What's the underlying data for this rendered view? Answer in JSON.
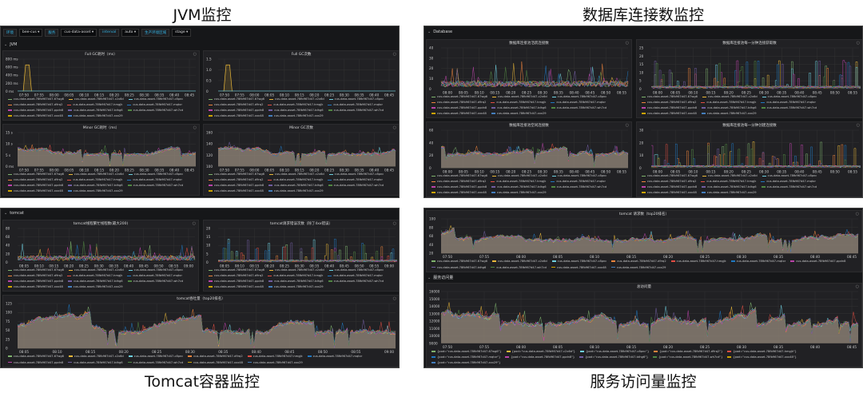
{
  "captions": {
    "jvm": "JVM监控",
    "db": "数据库连接数监控",
    "tomcat": "Tomcat容器监控",
    "traffic": "服务访问量监控"
  },
  "jvm_toolbar": [
    {
      "label": "环境",
      "value": "bee-cus ▾"
    },
    {
      "label": "服务",
      "value": "cus-data-asset ▾"
    },
    {
      "label": "interval",
      "value": "auto ▾"
    },
    {
      "label": "生产环境区域",
      "value": "stage ▾"
    }
  ],
  "rows": {
    "jvm": "JVM",
    "db": "Database",
    "tomcat": "tomcat",
    "traffic": "服务访问量"
  },
  "legend": [
    "cus-data-asset-78fb967d47-67wg6",
    "cus-data-asset-78fb967d47-c2x6d",
    "cus-data-asset-78fb967d47-c8pnc",
    "cus-data-asset-78fb967d47-d9rq2",
    "cus-data-asset-78fb967d47-hmgjk",
    "cus-data-asset-78fb967d47-mqtxr",
    "cus-data-asset-78fb967d47-ppdn8",
    "cus-data-asset-78fb967d47-tdhg6",
    "cus-data-asset-78fb967d47-wh7cd",
    "cus-data-asset-78fb967d47-xxx48",
    "cus-data-asset-78fb967d47-xxx29"
  ],
  "legend_pod": [
    "{pod=\"cus-data-asset-78fb967d47-67wg6\"}",
    "{pod=\"cus-data-asset-78fb967d47-c2x6d\"}",
    "{pod=\"cus-data-asset-78fb967d47-c8pnc\"}",
    "{pod=\"cus-data-asset-78fb967d47-d9rq2\"}",
    "{pod=\"cus-data-asset-78fb967d47-hmgjk\"}",
    "{pod=\"cus-data-asset-78fb967d47-mqtxr\"}",
    "{pod=\"cus-data-asset-78fb967d47-ppdn8\"}",
    "{pod=\"cus-data-asset-78fb967d47-tdhg6\"}",
    "{pod=\"cus-data-asset-78fb967d47-wh7cd\"}",
    "{pod=\"cus-data-asset-78fb967d47-xxx48\"}",
    "{pod=\"cus-data-asset-78fb967d47-xxx29\"}"
  ],
  "colors": [
    "#7eb26d",
    "#eab839",
    "#6ed0e0",
    "#ef843c",
    "#e24d42",
    "#1f78c1",
    "#ba43a9",
    "#705da0",
    "#508642",
    "#cca300",
    "#447ebc"
  ],
  "charts": {
    "fullgc_time": {
      "title": "Full GC耗时（ms）",
      "kind": "pulse",
      "yticks": [
        "0 ms",
        "200 ms",
        "400 ms",
        "600 ms",
        "800 ms"
      ],
      "xticks": [
        "07:50",
        "07:55",
        "08:00",
        "08:05",
        "08:10",
        "08:15",
        "08:20",
        "08:25",
        "08:30",
        "08:35",
        "08:40",
        "08:45"
      ]
    },
    "fullgc_count": {
      "title": "Full GC次数",
      "kind": "pulse",
      "yticks": [
        "0",
        "0.5",
        "1.0",
        "1.5"
      ],
      "xticks": [
        "07:50",
        "07:55",
        "08:00",
        "08:05",
        "08:10",
        "08:15",
        "08:20",
        "08:25",
        "08:30",
        "08:35",
        "08:40",
        "08:45"
      ]
    },
    "minorgc_time": {
      "title": "Minor GC耗时（ms）",
      "kind": "area",
      "yticks": [
        "0 ms",
        "5 s",
        "10 s",
        "15 s"
      ],
      "xticks": [
        "07:50",
        "07:55",
        "08:00",
        "08:05",
        "08:10",
        "08:15",
        "08:20",
        "08:25",
        "08:30",
        "08:35",
        "08:40",
        "08:45"
      ]
    },
    "minorgc_count": {
      "title": "Minor GC次数",
      "kind": "area",
      "yticks": [
        "100",
        "120",
        "140",
        "160"
      ],
      "xticks": [
        "07:50",
        "07:55",
        "08:00",
        "08:05",
        "08:10",
        "08:15",
        "08:20",
        "08:25",
        "08:30",
        "08:35",
        "08:40",
        "08:45"
      ]
    },
    "db_active": {
      "title": "数据库连接池活跃连接数",
      "kind": "spike",
      "yticks": [
        "0",
        "10",
        "20",
        "30",
        "40"
      ],
      "xticks": [
        "08:00",
        "08:05",
        "08:10",
        "08:15",
        "08:20",
        "08:25",
        "08:30",
        "08:35",
        "08:40",
        "08:45",
        "08:50",
        "08:55"
      ]
    },
    "db_timeout": {
      "title": "数据库连接池每一分钟连接获取数",
      "kind": "bars",
      "yticks": [
        "0",
        "5",
        "10",
        "15",
        "20",
        "25"
      ],
      "xticks": [
        "08:00",
        "08:05",
        "08:10",
        "08:15",
        "08:20",
        "08:25",
        "08:30",
        "08:35",
        "08:40",
        "08:45",
        "08:50",
        "08:55"
      ]
    },
    "db_idle": {
      "title": "数据库连接池空闲连接数",
      "kind": "area",
      "yticks": [
        "0",
        "20",
        "40",
        "60"
      ],
      "xticks": [
        "08:00",
        "08:05",
        "08:10",
        "08:15",
        "08:20",
        "08:25",
        "08:30",
        "08:35",
        "08:40",
        "08:45",
        "08:50",
        "08:55"
      ]
    },
    "db_create": {
      "title": "数据库连接池每一分钟创建连接数",
      "kind": "bars",
      "yticks": [
        "0",
        "10",
        "20",
        "30"
      ],
      "xticks": [
        "08:00",
        "08:05",
        "08:10",
        "08:15",
        "08:20",
        "08:25",
        "08:30",
        "08:35",
        "08:40",
        "08:45",
        "08:50",
        "08:55"
      ]
    },
    "tc_busy": {
      "title": "tomcat线程繁忙线程数(最大200)",
      "kind": "spike",
      "yticks": [
        "0",
        "20",
        "40",
        "60",
        "80"
      ],
      "xticks": [
        "08:05",
        "08:10",
        "08:15",
        "08:20",
        "08:25",
        "08:30",
        "08:35",
        "08:40",
        "08:45",
        "08:50",
        "08:55",
        "09:00"
      ]
    },
    "tc_err": {
      "title": "tomcat请求错误次数（除了4xx错误）",
      "kind": "bars",
      "yticks": [
        "0",
        "5",
        "10",
        "15",
        "20"
      ],
      "xticks": [
        "08:05",
        "08:10",
        "08:15",
        "08:20",
        "08:25",
        "08:30",
        "08:35",
        "08:40",
        "08:45",
        "08:50",
        "08:55",
        "09:00"
      ]
    },
    "tc_tput": {
      "title": "tomcat吞吐量（top20排名）",
      "kind": "area",
      "yticks": [
        "0",
        "25",
        "50",
        "75",
        "100",
        "125"
      ],
      "xticks": [
        "08:05",
        "08:10",
        "08:15",
        "08:20",
        "08:25",
        "08:30",
        "08:35",
        "08:40",
        "08:45",
        "08:50",
        "08:55",
        "09:00"
      ]
    },
    "svc_req": {
      "title": "tomcat 请求数（top20排名）",
      "kind": "area",
      "yticks": [
        "20",
        "40",
        "60",
        "80",
        "100"
      ],
      "xticks": [
        "07:50",
        "07:55",
        "08:00",
        "08:05",
        "08:10",
        "08:15",
        "08:20",
        "08:25",
        "08:30",
        "08:35",
        "08:40",
        "08:45"
      ]
    },
    "svc_total": {
      "title": "总访问量",
      "kind": "area",
      "yticks": [
        "9000",
        "10000",
        "11000",
        "12000",
        "13000",
        "14000",
        "15000",
        "16000"
      ],
      "xticks": [
        "07:50",
        "07:55",
        "08:00",
        "08:05",
        "08:10",
        "08:15",
        "08:20",
        "08:25",
        "08:30",
        "08:35",
        "08:40",
        "08:45"
      ]
    }
  }
}
